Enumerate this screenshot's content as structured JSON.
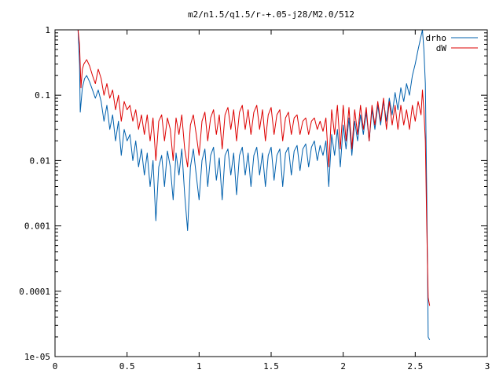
{
  "chart_data": {
    "type": "line",
    "title": "m2/n1.5/q1.5/r-+.05-j28/M2.0/512",
    "xlabel": "",
    "ylabel": "",
    "xlim": [
      0,
      3
    ],
    "ylim": [
      1e-05,
      1
    ],
    "yscale": "log",
    "grid": false,
    "legend_position": "top-right",
    "x_ticks": [
      0,
      0.5,
      1,
      1.5,
      2,
      2.5,
      3
    ],
    "x_tick_labels": [
      "0",
      "0.5",
      "1",
      "1.5",
      "2",
      "2.5",
      "3"
    ],
    "y_ticks": [
      1e-05,
      0.0001,
      0.001,
      0.01,
      0.1,
      1
    ],
    "y_tick_labels": [
      "1e-05",
      "0.0001",
      "0.001",
      "0.01",
      "0.1",
      "1"
    ],
    "series": [
      {
        "name": "drho",
        "color": "#0060ad",
        "points": [
          [
            0.16,
            1.0
          ],
          [
            0.17,
            0.3
          ],
          [
            0.175,
            0.055
          ],
          [
            0.19,
            0.13
          ],
          [
            0.205,
            0.18
          ],
          [
            0.22,
            0.2
          ],
          [
            0.24,
            0.16
          ],
          [
            0.26,
            0.12
          ],
          [
            0.28,
            0.09
          ],
          [
            0.3,
            0.12
          ],
          [
            0.32,
            0.08
          ],
          [
            0.34,
            0.04
          ],
          [
            0.36,
            0.07
          ],
          [
            0.38,
            0.03
          ],
          [
            0.4,
            0.05
          ],
          [
            0.42,
            0.02
          ],
          [
            0.44,
            0.04
          ],
          [
            0.46,
            0.012
          ],
          [
            0.48,
            0.03
          ],
          [
            0.5,
            0.02
          ],
          [
            0.52,
            0.025
          ],
          [
            0.54,
            0.01
          ],
          [
            0.56,
            0.02
          ],
          [
            0.58,
            0.008
          ],
          [
            0.6,
            0.015
          ],
          [
            0.62,
            0.006
          ],
          [
            0.64,
            0.013
          ],
          [
            0.66,
            0.004
          ],
          [
            0.68,
            0.01
          ],
          [
            0.7,
            0.0012
          ],
          [
            0.72,
            0.008
          ],
          [
            0.74,
            0.012
          ],
          [
            0.76,
            0.004
          ],
          [
            0.78,
            0.014
          ],
          [
            0.8,
            0.008
          ],
          [
            0.82,
            0.0025
          ],
          [
            0.84,
            0.013
          ],
          [
            0.86,
            0.006
          ],
          [
            0.88,
            0.015
          ],
          [
            0.9,
            0.003
          ],
          [
            0.92,
            0.00085
          ],
          [
            0.94,
            0.008
          ],
          [
            0.96,
            0.015
          ],
          [
            0.98,
            0.006
          ],
          [
            1.0,
            0.0025
          ],
          [
            1.02,
            0.01
          ],
          [
            1.04,
            0.015
          ],
          [
            1.06,
            0.004
          ],
          [
            1.08,
            0.012
          ],
          [
            1.1,
            0.016
          ],
          [
            1.12,
            0.005
          ],
          [
            1.14,
            0.011
          ],
          [
            1.16,
            0.0025
          ],
          [
            1.18,
            0.012
          ],
          [
            1.2,
            0.015
          ],
          [
            1.22,
            0.006
          ],
          [
            1.24,
            0.013
          ],
          [
            1.26,
            0.003
          ],
          [
            1.28,
            0.012
          ],
          [
            1.3,
            0.016
          ],
          [
            1.32,
            0.006
          ],
          [
            1.34,
            0.013
          ],
          [
            1.36,
            0.004
          ],
          [
            1.38,
            0.012
          ],
          [
            1.4,
            0.016
          ],
          [
            1.42,
            0.006
          ],
          [
            1.44,
            0.013
          ],
          [
            1.46,
            0.004
          ],
          [
            1.48,
            0.012
          ],
          [
            1.5,
            0.016
          ],
          [
            1.52,
            0.005
          ],
          [
            1.54,
            0.012
          ],
          [
            1.56,
            0.015
          ],
          [
            1.58,
            0.004
          ],
          [
            1.6,
            0.013
          ],
          [
            1.62,
            0.016
          ],
          [
            1.64,
            0.006
          ],
          [
            1.66,
            0.014
          ],
          [
            1.68,
            0.017
          ],
          [
            1.7,
            0.007
          ],
          [
            1.72,
            0.015
          ],
          [
            1.74,
            0.018
          ],
          [
            1.76,
            0.008
          ],
          [
            1.78,
            0.016
          ],
          [
            1.8,
            0.02
          ],
          [
            1.82,
            0.01
          ],
          [
            1.84,
            0.017
          ],
          [
            1.86,
            0.012
          ],
          [
            1.88,
            0.02
          ],
          [
            1.9,
            0.004
          ],
          [
            1.92,
            0.025
          ],
          [
            1.94,
            0.012
          ],
          [
            1.96,
            0.03
          ],
          [
            1.98,
            0.008
          ],
          [
            2.0,
            0.035
          ],
          [
            2.02,
            0.015
          ],
          [
            2.04,
            0.045
          ],
          [
            2.06,
            0.012
          ],
          [
            2.08,
            0.04
          ],
          [
            2.1,
            0.02
          ],
          [
            2.12,
            0.05
          ],
          [
            2.14,
            0.025
          ],
          [
            2.16,
            0.055
          ],
          [
            2.18,
            0.02
          ],
          [
            2.2,
            0.06
          ],
          [
            2.22,
            0.03
          ],
          [
            2.24,
            0.07
          ],
          [
            2.26,
            0.035
          ],
          [
            2.28,
            0.08
          ],
          [
            2.3,
            0.04
          ],
          [
            2.32,
            0.09
          ],
          [
            2.34,
            0.05
          ],
          [
            2.36,
            0.11
          ],
          [
            2.38,
            0.06
          ],
          [
            2.4,
            0.13
          ],
          [
            2.42,
            0.08
          ],
          [
            2.44,
            0.15
          ],
          [
            2.46,
            0.1
          ],
          [
            2.48,
            0.2
          ],
          [
            2.5,
            0.3
          ],
          [
            2.52,
            0.5
          ],
          [
            2.54,
            0.8
          ],
          [
            2.55,
            1.0
          ],
          [
            2.56,
            0.5
          ],
          [
            2.57,
            0.15
          ],
          [
            2.58,
            0.003
          ],
          [
            2.59,
            2e-05
          ],
          [
            2.6,
            1.8e-05
          ]
        ]
      },
      {
        "name": "dW",
        "color": "#dd0000",
        "points": [
          [
            0.16,
            1.0
          ],
          [
            0.17,
            0.6
          ],
          [
            0.18,
            0.13
          ],
          [
            0.19,
            0.25
          ],
          [
            0.2,
            0.3
          ],
          [
            0.22,
            0.35
          ],
          [
            0.24,
            0.28
          ],
          [
            0.26,
            0.2
          ],
          [
            0.28,
            0.15
          ],
          [
            0.3,
            0.25
          ],
          [
            0.32,
            0.18
          ],
          [
            0.34,
            0.1
          ],
          [
            0.36,
            0.15
          ],
          [
            0.38,
            0.09
          ],
          [
            0.4,
            0.12
          ],
          [
            0.42,
            0.06
          ],
          [
            0.44,
            0.1
          ],
          [
            0.46,
            0.04
          ],
          [
            0.48,
            0.08
          ],
          [
            0.5,
            0.06
          ],
          [
            0.52,
            0.07
          ],
          [
            0.54,
            0.04
          ],
          [
            0.56,
            0.06
          ],
          [
            0.58,
            0.03
          ],
          [
            0.6,
            0.05
          ],
          [
            0.62,
            0.025
          ],
          [
            0.64,
            0.05
          ],
          [
            0.66,
            0.02
          ],
          [
            0.68,
            0.045
          ],
          [
            0.7,
            0.01
          ],
          [
            0.72,
            0.04
          ],
          [
            0.74,
            0.05
          ],
          [
            0.76,
            0.02
          ],
          [
            0.78,
            0.045
          ],
          [
            0.8,
            0.03
          ],
          [
            0.82,
            0.01
          ],
          [
            0.84,
            0.045
          ],
          [
            0.86,
            0.025
          ],
          [
            0.88,
            0.05
          ],
          [
            0.9,
            0.015
          ],
          [
            0.92,
            0.008
          ],
          [
            0.94,
            0.035
          ],
          [
            0.96,
            0.05
          ],
          [
            0.98,
            0.025
          ],
          [
            1.0,
            0.012
          ],
          [
            1.02,
            0.04
          ],
          [
            1.04,
            0.055
          ],
          [
            1.06,
            0.02
          ],
          [
            1.08,
            0.045
          ],
          [
            1.1,
            0.06
          ],
          [
            1.12,
            0.025
          ],
          [
            1.14,
            0.05
          ],
          [
            1.16,
            0.015
          ],
          [
            1.18,
            0.05
          ],
          [
            1.2,
            0.065
          ],
          [
            1.22,
            0.03
          ],
          [
            1.24,
            0.06
          ],
          [
            1.26,
            0.02
          ],
          [
            1.28,
            0.055
          ],
          [
            1.3,
            0.07
          ],
          [
            1.32,
            0.03
          ],
          [
            1.34,
            0.06
          ],
          [
            1.36,
            0.025
          ],
          [
            1.38,
            0.055
          ],
          [
            1.4,
            0.07
          ],
          [
            1.42,
            0.03
          ],
          [
            1.44,
            0.06
          ],
          [
            1.46,
            0.02
          ],
          [
            1.48,
            0.05
          ],
          [
            1.5,
            0.065
          ],
          [
            1.52,
            0.025
          ],
          [
            1.54,
            0.05
          ],
          [
            1.56,
            0.06
          ],
          [
            1.58,
            0.02
          ],
          [
            1.6,
            0.045
          ],
          [
            1.62,
            0.055
          ],
          [
            1.64,
            0.025
          ],
          [
            1.66,
            0.045
          ],
          [
            1.68,
            0.05
          ],
          [
            1.7,
            0.025
          ],
          [
            1.72,
            0.04
          ],
          [
            1.74,
            0.045
          ],
          [
            1.76,
            0.025
          ],
          [
            1.78,
            0.04
          ],
          [
            1.8,
            0.045
          ],
          [
            1.82,
            0.03
          ],
          [
            1.84,
            0.04
          ],
          [
            1.86,
            0.028
          ],
          [
            1.88,
            0.045
          ],
          [
            1.9,
            0.008
          ],
          [
            1.92,
            0.06
          ],
          [
            1.94,
            0.025
          ],
          [
            1.96,
            0.07
          ],
          [
            1.98,
            0.015
          ],
          [
            2.0,
            0.07
          ],
          [
            2.02,
            0.02
          ],
          [
            2.04,
            0.065
          ],
          [
            2.06,
            0.015
          ],
          [
            2.08,
            0.06
          ],
          [
            2.1,
            0.025
          ],
          [
            2.12,
            0.07
          ],
          [
            2.14,
            0.03
          ],
          [
            2.16,
            0.065
          ],
          [
            2.18,
            0.02
          ],
          [
            2.2,
            0.07
          ],
          [
            2.22,
            0.035
          ],
          [
            2.24,
            0.08
          ],
          [
            2.26,
            0.04
          ],
          [
            2.28,
            0.09
          ],
          [
            2.3,
            0.03
          ],
          [
            2.32,
            0.08
          ],
          [
            2.34,
            0.035
          ],
          [
            2.36,
            0.07
          ],
          [
            2.38,
            0.03
          ],
          [
            2.4,
            0.07
          ],
          [
            2.42,
            0.035
          ],
          [
            2.44,
            0.06
          ],
          [
            2.46,
            0.03
          ],
          [
            2.48,
            0.07
          ],
          [
            2.5,
            0.04
          ],
          [
            2.52,
            0.08
          ],
          [
            2.54,
            0.05
          ],
          [
            2.55,
            0.12
          ],
          [
            2.56,
            0.06
          ],
          [
            2.57,
            0.02
          ],
          [
            2.58,
            0.001
          ],
          [
            2.59,
            8e-05
          ],
          [
            2.6,
            6e-05
          ]
        ]
      }
    ]
  }
}
